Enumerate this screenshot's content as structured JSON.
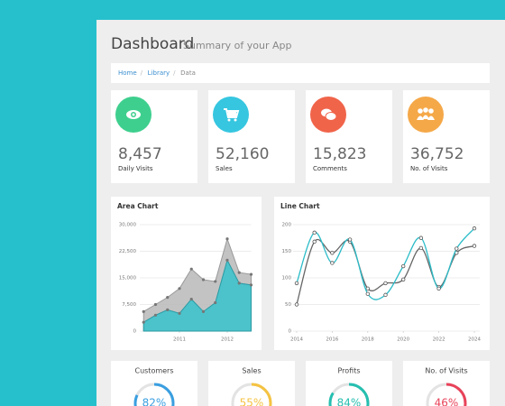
{
  "header": {
    "title": "Dashboard",
    "subtitle": "Summary of your App"
  },
  "breadcrumb": [
    "Home",
    "Library",
    "Data"
  ],
  "stats": [
    {
      "value": "8,457",
      "label": "Daily Visits",
      "color": "#3ecf8e"
    },
    {
      "value": "52,160",
      "label": "Sales",
      "color": "#36c6e0"
    },
    {
      "value": "15,823",
      "label": "Comments",
      "color": "#f0644a"
    },
    {
      "value": "36,752",
      "label": "No. of Visits",
      "color": "#f5a848"
    }
  ],
  "chart_data": [
    {
      "type": "area",
      "title": "Area Chart",
      "x": [
        2010.25,
        2010.5,
        2010.75,
        2011,
        2011.25,
        2011.5,
        2011.75,
        2012,
        2012.25,
        2012.5
      ],
      "series": [
        {
          "color": "#bdbdbd",
          "values": [
            5500,
            7500,
            9500,
            12000,
            17500,
            14500,
            14000,
            26000,
            16500,
            16000
          ]
        },
        {
          "color": "#3fc3cc",
          "values": [
            2500,
            4500,
            6000,
            5000,
            9000,
            5500,
            8000,
            20000,
            13500,
            13000
          ]
        }
      ],
      "xlim": [
        2010.17,
        2012.5
      ],
      "xticks": [
        2011,
        2012
      ],
      "ylim": [
        0,
        30000
      ],
      "yticks": [
        0,
        {
          "value": 7500,
          "label": "7,500"
        },
        {
          "value": 15000,
          "label": "15,000"
        },
        {
          "value": 22500,
          "label": "22,500"
        },
        {
          "value": 30000,
          "label": "30,000"
        }
      ],
      "grid": true
    },
    {
      "type": "line",
      "title": "Line Chart",
      "x": [
        2014,
        2015,
        2016,
        2017,
        2018,
        2019,
        2020,
        2021,
        2022,
        2023,
        2024
      ],
      "series": [
        {
          "color": "#666666",
          "values": [
            50,
            168,
            147,
            168,
            80,
            90,
            97,
            156,
            83,
            147,
            160
          ]
        },
        {
          "color": "#2bbcc8",
          "values": [
            90,
            185,
            128,
            172,
            70,
            68,
            122,
            175,
            80,
            155,
            193
          ]
        }
      ],
      "xlim": [
        2014,
        2024
      ],
      "xticks": [
        2014,
        2016,
        2018,
        2020,
        2022,
        2024
      ],
      "ylim": [
        0,
        200
      ],
      "yticks": [
        0,
        50,
        100,
        150,
        200
      ],
      "grid": true
    }
  ],
  "gauges": [
    {
      "title": "Customers",
      "value": 82,
      "value_label": "82%",
      "color": "#3a9fe0"
    },
    {
      "title": "Sales",
      "value": 55,
      "value_label": "55%",
      "color": "#f5c342"
    },
    {
      "title": "Profits",
      "value": 84,
      "value_label": "84%",
      "color": "#26bfb0"
    },
    {
      "title": "No. of Visits",
      "value": 46,
      "value_label": "46%",
      "color": "#e8435a"
    }
  ]
}
